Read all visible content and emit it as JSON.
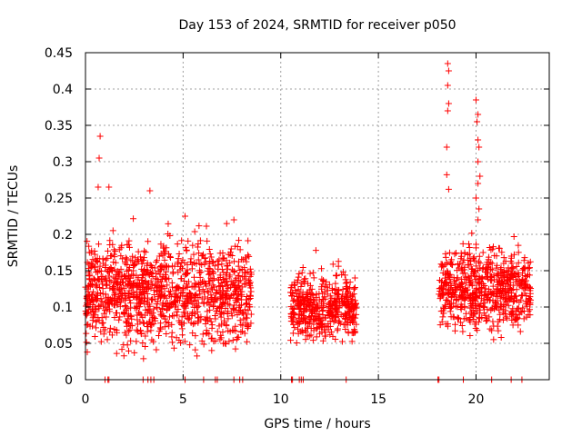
{
  "chart_data": {
    "type": "scatter",
    "title": "Day 153 of 2024, SRMTID for receiver p050",
    "xlabel": "GPS time / hours",
    "ylabel": "SRMTID / TECUs",
    "xlim": [
      0,
      23.75
    ],
    "ylim": [
      0,
      0.45
    ],
    "x_ticks": [
      0,
      5,
      10,
      15,
      20
    ],
    "x_tick_labels": [
      "0",
      "5",
      "10",
      "15",
      "20"
    ],
    "y_ticks": [
      0,
      0.05,
      0.1,
      0.15,
      0.2,
      0.25,
      0.3,
      0.35,
      0.4,
      0.45
    ],
    "y_tick_labels": [
      "0",
      "0.05",
      "0.1",
      "0.15",
      "0.2",
      "0.25",
      "0.3",
      "0.35",
      "0.4",
      "0.45"
    ],
    "grid": true,
    "marker": "+",
    "color": "#ff0000",
    "segments": [
      {
        "x_start": 0.0,
        "x_end": 8.5,
        "y_min": 0.02,
        "y_max": 0.22,
        "y_center": 0.12
      },
      {
        "x_start": 10.5,
        "x_end": 13.9,
        "y_min": 0.04,
        "y_max": 0.16,
        "y_center": 0.105
      },
      {
        "x_start": 18.1,
        "x_end": 22.8,
        "y_min": 0.05,
        "y_max": 0.2,
        "y_center": 0.125
      }
    ],
    "peaks": [
      {
        "x": 0.75,
        "y": 0.335
      },
      {
        "x": 0.7,
        "y": 0.305
      },
      {
        "x": 0.65,
        "y": 0.265
      },
      {
        "x": 1.2,
        "y": 0.265
      },
      {
        "x": 3.3,
        "y": 0.26
      },
      {
        "x": 7.6,
        "y": 0.22
      },
      {
        "x": 5.1,
        "y": 0.225
      },
      {
        "x": 11.8,
        "y": 0.178
      },
      {
        "x": 18.55,
        "y": 0.435
      },
      {
        "x": 18.6,
        "y": 0.425
      },
      {
        "x": 18.55,
        "y": 0.405
      },
      {
        "x": 18.6,
        "y": 0.38
      },
      {
        "x": 18.55,
        "y": 0.37
      },
      {
        "x": 18.5,
        "y": 0.32
      },
      {
        "x": 18.5,
        "y": 0.282
      },
      {
        "x": 18.6,
        "y": 0.262
      },
      {
        "x": 20.0,
        "y": 0.385
      },
      {
        "x": 20.1,
        "y": 0.365
      },
      {
        "x": 20.05,
        "y": 0.355
      },
      {
        "x": 20.1,
        "y": 0.33
      },
      {
        "x": 20.15,
        "y": 0.32
      },
      {
        "x": 20.1,
        "y": 0.3
      },
      {
        "x": 20.2,
        "y": 0.28
      },
      {
        "x": 20.1,
        "y": 0.27
      },
      {
        "x": 20.0,
        "y": 0.25
      },
      {
        "x": 20.15,
        "y": 0.235
      },
      {
        "x": 20.1,
        "y": 0.22
      }
    ],
    "zero_values_x": [
      1.0,
      1.15,
      1.2,
      2.95,
      3.2,
      3.35,
      3.5,
      5.1,
      6.05,
      6.65,
      6.75,
      7.6,
      7.9,
      8.05,
      10.55,
      10.6,
      10.95,
      11.05,
      11.15,
      13.35,
      18.05,
      18.1,
      19.35,
      20.8,
      21.8,
      22.35
    ]
  }
}
